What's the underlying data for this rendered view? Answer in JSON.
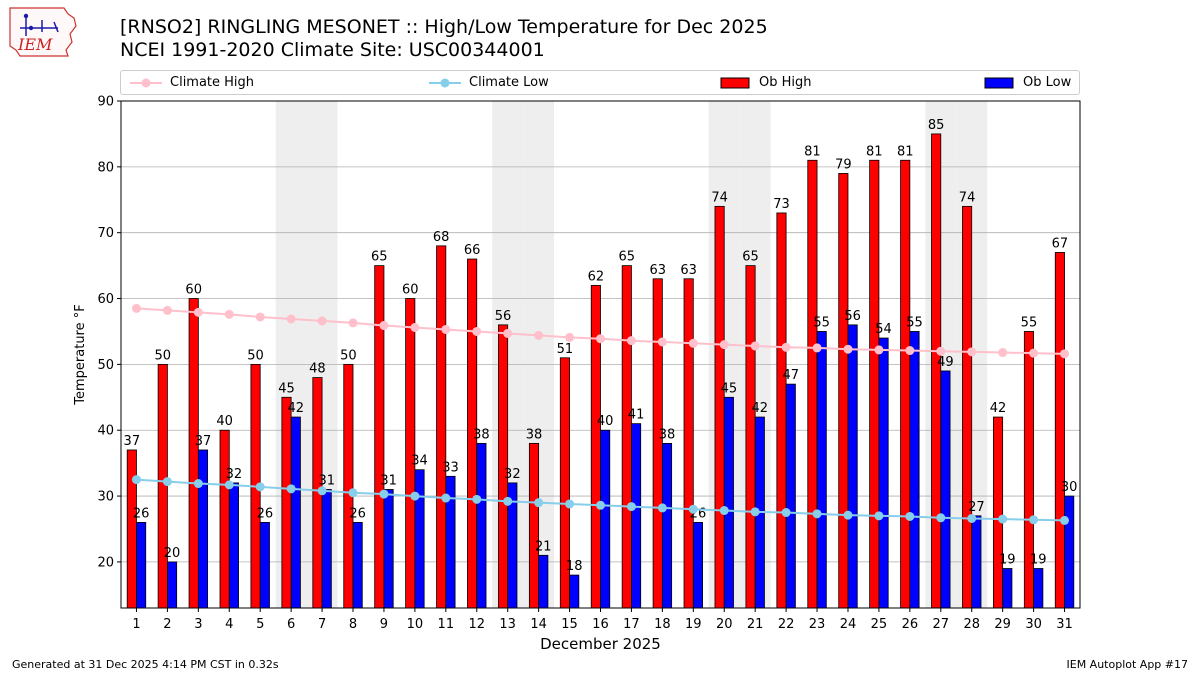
{
  "header": {
    "title_line1": "[RNSO2] RINGLING MESONET :: High/Low Temperature for Dec 2025",
    "title_line2": "NCEI 1991-2020 Climate Site: USC00344001"
  },
  "logo": {
    "text": "IEM"
  },
  "footer": {
    "left": "Generated at 31 Dec 2025 4:14 PM CST in 0.32s",
    "right": "IEM Autoplot App #17"
  },
  "colors": {
    "ob_high": "#ff0000",
    "ob_low": "#0000ff",
    "climate_high": "#ffc0cb",
    "climate_low": "#87ceeb",
    "weekend_shade": "#eeeeee",
    "grid": "#b0b0b0"
  },
  "chart_data": {
    "type": "bar",
    "xlabel": "December 2025",
    "ylabel": "Temperature °F",
    "ylim": [
      13,
      90
    ],
    "yticks": [
      20,
      30,
      40,
      50,
      60,
      70,
      80,
      90
    ],
    "grid": "horizontal",
    "legend_position": "top",
    "categories": [
      "1",
      "2",
      "3",
      "4",
      "5",
      "6",
      "7",
      "8",
      "9",
      "10",
      "11",
      "12",
      "13",
      "14",
      "15",
      "16",
      "17",
      "18",
      "19",
      "20",
      "21",
      "22",
      "23",
      "24",
      "25",
      "26",
      "27",
      "28",
      "29",
      "30",
      "31"
    ],
    "shaded_days": [
      6,
      7,
      13,
      14,
      20,
      21,
      27,
      28
    ],
    "series": [
      {
        "name": "Climate High",
        "kind": "line",
        "values": [
          58.5,
          58.2,
          57.9,
          57.6,
          57.2,
          56.9,
          56.6,
          56.3,
          55.9,
          55.6,
          55.3,
          55.0,
          54.7,
          54.4,
          54.1,
          53.9,
          53.6,
          53.4,
          53.2,
          53.0,
          52.8,
          52.6,
          52.5,
          52.3,
          52.2,
          52.1,
          52.0,
          51.9,
          51.8,
          51.7,
          51.6
        ]
      },
      {
        "name": "Climate Low",
        "kind": "line",
        "values": [
          32.5,
          32.2,
          31.9,
          31.7,
          31.4,
          31.1,
          30.8,
          30.5,
          30.3,
          30.0,
          29.7,
          29.5,
          29.2,
          29.0,
          28.8,
          28.6,
          28.4,
          28.2,
          28.0,
          27.8,
          27.6,
          27.5,
          27.3,
          27.1,
          27.0,
          26.9,
          26.7,
          26.6,
          26.5,
          26.4,
          26.3
        ]
      },
      {
        "name": "Ob High",
        "kind": "bar",
        "values": [
          37,
          50,
          60,
          40,
          50,
          45,
          48,
          50,
          65,
          60,
          68,
          66,
          56,
          38,
          51,
          62,
          65,
          63,
          63,
          74,
          65,
          73,
          81,
          79,
          81,
          81,
          85,
          74,
          42,
          55,
          67
        ]
      },
      {
        "name": "Ob Low",
        "kind": "bar",
        "values": [
          26,
          20,
          37,
          32,
          26,
          42,
          31,
          26,
          31,
          34,
          33,
          38,
          32,
          21,
          18,
          40,
          41,
          38,
          26,
          45,
          42,
          47,
          55,
          56,
          54,
          55,
          49,
          27,
          19,
          19,
          30
        ]
      }
    ]
  }
}
